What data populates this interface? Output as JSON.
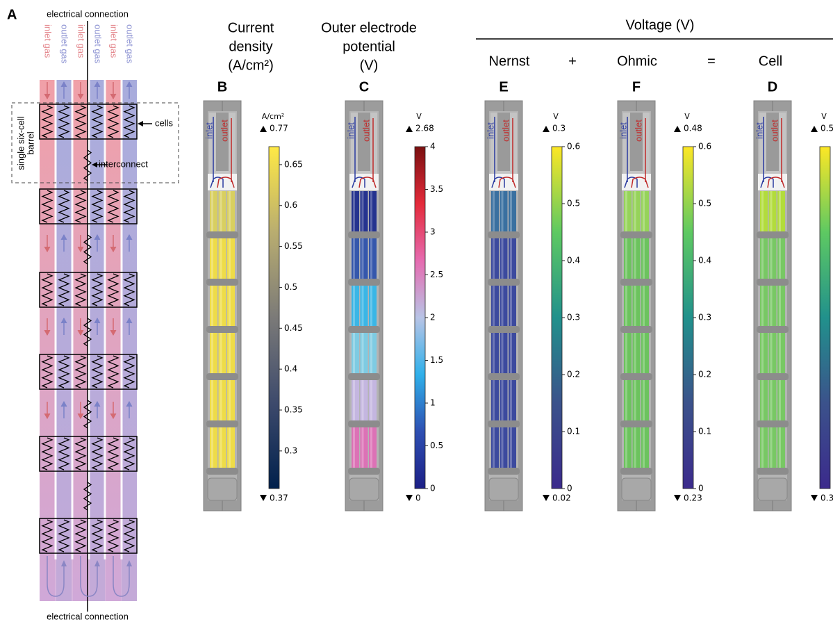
{
  "panel_a": {
    "label": "A",
    "top_label": "electrical connection",
    "bottom_label": "electrical connection",
    "column_labels": [
      "inlet gas",
      "outlet gas",
      "inlet gas",
      "outlet gas",
      "inlet gas",
      "outlet gas"
    ],
    "box_label_lines": [
      "single six-cell",
      "barrel"
    ],
    "cells_label": "cells",
    "interconnect_label": "interconnect"
  },
  "voltage_header": "Voltage (V)",
  "operators": [
    "+",
    "="
  ],
  "tube_labels": [
    "inlet",
    "outlet"
  ],
  "panels": [
    {
      "letter": "B",
      "title_lines": [
        "Current",
        "density",
        "(A/cm²)"
      ],
      "colorbar": {
        "unit": "A/cm²",
        "max": 0.77,
        "min": 0.37,
        "clim": [
          0.254,
          0.672
        ],
        "ticks": [
          0.3,
          0.35,
          0.4,
          0.45,
          0.5,
          0.55,
          0.6,
          0.65
        ],
        "colormap": [
          "#00204c",
          "#3d4a6c",
          "#7b7a78",
          "#b9ad70",
          "#ffe945"
        ]
      },
      "segment_colors": [
        "#d8cf60",
        "#eedc48",
        "#eedc48",
        "#eedc48",
        "#eedc48",
        "#eedc48"
      ]
    },
    {
      "letter": "C",
      "title_lines": [
        "Outer electrode",
        "potential",
        "(V)"
      ],
      "colorbar": {
        "unit": "V",
        "max": 2.68,
        "min": 0,
        "clim": [
          0,
          4
        ],
        "ticks": [
          0,
          0.5,
          1,
          1.5,
          2,
          2.5,
          3,
          3.5,
          4
        ],
        "colormap": [
          "#1c1f86",
          "#2e4fb2",
          "#2fb0ea",
          "#b8c4e6",
          "#e66bb0",
          "#e42a3a",
          "#7a1010"
        ]
      },
      "segment_colors": [
        "#25338f",
        "#3557ac",
        "#3ab6e6",
        "#7ecbe2",
        "#c4b6e0",
        "#dc72b6"
      ]
    },
    {
      "letter": "E",
      "title_lines": [
        "Nernst"
      ],
      "colorbar": {
        "unit": "V",
        "max": 0.3,
        "min": 0.02,
        "clim": [
          0,
          0.6
        ],
        "ticks": [
          0,
          0.1,
          0.2,
          0.3,
          0.4,
          0.5,
          0.6
        ],
        "colormap": [
          "#3b2a8c",
          "#3b528b",
          "#21918c",
          "#5ec962",
          "#fde725"
        ]
      },
      "segment_colors": [
        "#3a70a0",
        "#3c4a9e",
        "#3c4a9e",
        "#3c4a9e",
        "#3c4a9e",
        "#3c4a9e"
      ]
    },
    {
      "letter": "F",
      "title_lines": [
        "Ohmic"
      ],
      "colorbar": {
        "unit": "V",
        "max": 0.48,
        "min": 0.23,
        "clim": [
          0,
          0.6
        ],
        "ticks": [
          0,
          0.1,
          0.2,
          0.3,
          0.4,
          0.5,
          0.6
        ],
        "colormap": [
          "#3b2a8c",
          "#3b528b",
          "#21918c",
          "#5ec962",
          "#fde725"
        ]
      },
      "segment_colors": [
        "#96d35a",
        "#6cc35e",
        "#6cc35e",
        "#6cc35e",
        "#6cc35e",
        "#6cc35e"
      ]
    },
    {
      "letter": "D",
      "title_lines": [
        "Cell"
      ],
      "colorbar": {
        "unit": "V",
        "max": 0.5,
        "min": 0.3,
        "colormap": [
          "#3b2a8c",
          "#3b528b",
          "#21918c",
          "#5ec962",
          "#fde725"
        ]
      },
      "segment_colors": [
        "#b2dc3c",
        "#78c864",
        "#78c864",
        "#78c864",
        "#78c864",
        "#78c864"
      ]
    }
  ]
}
